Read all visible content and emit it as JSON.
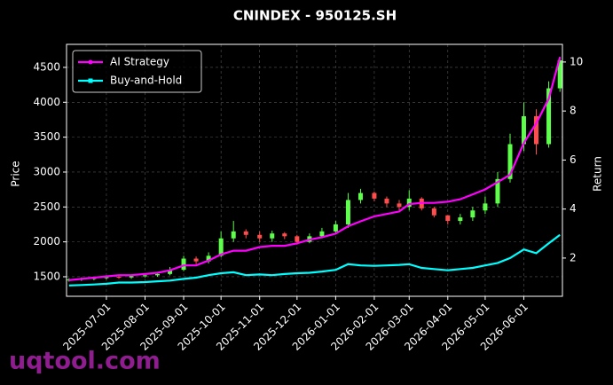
{
  "chart_data": {
    "type": "candlestick",
    "title": "CNINDEX - 950125.SH",
    "ylabel": "Price",
    "y2label": "Return",
    "watermark": "uqtool.com",
    "x": [
      "2025-06-01",
      "2025-06-11",
      "2025-06-21",
      "2025-07-01",
      "2025-07-11",
      "2025-07-21",
      "2025-08-01",
      "2025-08-11",
      "2025-08-21",
      "2025-09-01",
      "2025-09-11",
      "2025-09-21",
      "2025-10-01",
      "2025-10-11",
      "2025-10-21",
      "2025-11-01",
      "2025-11-11",
      "2025-11-21",
      "2025-12-01",
      "2025-12-11",
      "2025-12-21",
      "2026-01-01",
      "2026-01-11",
      "2026-01-21",
      "2026-02-01",
      "2026-02-11",
      "2026-02-21",
      "2026-03-01",
      "2026-03-11",
      "2026-03-21",
      "2026-04-01",
      "2026-04-11",
      "2026-04-21",
      "2026-05-01",
      "2026-05-11",
      "2026-05-21",
      "2026-06-01",
      "2026-06-11",
      "2026-06-21",
      "2026-06-30"
    ],
    "open": [
      1450,
      1460,
      1470,
      1480,
      1500,
      1490,
      1510,
      1520,
      1540,
      1600,
      1760,
      1720,
      1800,
      2050,
      2150,
      2100,
      2050,
      2120,
      2080,
      2000,
      2080,
      2150,
      2250,
      2600,
      2700,
      2620,
      2550,
      2500,
      2620,
      2480,
      2380,
      2300,
      2350,
      2450,
      2550,
      2900,
      3400,
      3800,
      3400,
      4200
    ],
    "high": [
      1480,
      1490,
      1500,
      1520,
      1520,
      1530,
      1540,
      1570,
      1640,
      1800,
      1790,
      1850,
      2150,
      2300,
      2180,
      2150,
      2160,
      2140,
      2100,
      2120,
      2200,
      2300,
      2700,
      2760,
      2720,
      2650,
      2600,
      2740,
      2640,
      2500,
      2380,
      2400,
      2500,
      2650,
      3000,
      3550,
      4000,
      3900,
      4300,
      4650
    ],
    "low": [
      1430,
      1440,
      1450,
      1460,
      1470,
      1470,
      1490,
      1500,
      1520,
      1580,
      1680,
      1690,
      1780,
      2000,
      2050,
      2000,
      2000,
      2040,
      1960,
      1980,
      2050,
      2120,
      2200,
      2550,
      2580,
      2500,
      2450,
      2450,
      2450,
      2350,
      2250,
      2250,
      2300,
      2400,
      2500,
      2850,
      3300,
      3250,
      3350,
      4150
    ],
    "close": [
      1460,
      1470,
      1480,
      1500,
      1490,
      1510,
      1520,
      1540,
      1600,
      1760,
      1720,
      1800,
      2050,
      2150,
      2100,
      2050,
      2120,
      2080,
      2000,
      2080,
      2150,
      2250,
      2600,
      2700,
      2620,
      2550,
      2500,
      2620,
      2480,
      2380,
      2300,
      2350,
      2450,
      2550,
      2900,
      3400,
      3800,
      3400,
      4200,
      4600
    ],
    "up_color": "#5dff4a",
    "down_color": "#ff4d4d",
    "series": [
      {
        "name": "AI Strategy",
        "color": "#ff00ff",
        "axis": "y2",
        "values": [
          1.1,
          1.15,
          1.2,
          1.25,
          1.3,
          1.3,
          1.35,
          1.4,
          1.5,
          1.7,
          1.7,
          1.9,
          2.15,
          2.3,
          2.3,
          2.45,
          2.5,
          2.5,
          2.6,
          2.75,
          2.85,
          3.0,
          3.3,
          3.5,
          3.7,
          3.8,
          3.9,
          4.2,
          4.25,
          4.25,
          4.3,
          4.4,
          4.6,
          4.8,
          5.1,
          5.4,
          6.7,
          7.5,
          8.5,
          10.2
        ]
      },
      {
        "name": "Buy-and-Hold",
        "color": "#00ffff",
        "axis": "y2",
        "values": [
          0.88,
          0.9,
          0.92,
          0.95,
          1.0,
          1.0,
          1.02,
          1.05,
          1.08,
          1.15,
          1.2,
          1.3,
          1.38,
          1.42,
          1.3,
          1.33,
          1.3,
          1.35,
          1.38,
          1.4,
          1.45,
          1.52,
          1.75,
          1.7,
          1.68,
          1.7,
          1.72,
          1.75,
          1.6,
          1.55,
          1.5,
          1.55,
          1.6,
          1.7,
          1.8,
          2.0,
          2.35,
          2.2,
          2.6,
          2.95
        ]
      }
    ],
    "xlim": [
      "2025-05-30",
      "2026-07-02"
    ],
    "xticks": [
      "2025-07-01",
      "2025-08-01",
      "2025-09-01",
      "2025-10-01",
      "2025-11-01",
      "2025-12-01",
      "2026-01-01",
      "2026-02-01",
      "2026-03-01",
      "2026-04-01",
      "2026-05-01",
      "2026-06-01"
    ],
    "ylim": [
      1220,
      4830
    ],
    "yticks": [
      1500,
      2000,
      2500,
      3000,
      3500,
      4000,
      4500
    ],
    "y2lim": [
      0.44,
      10.72
    ],
    "y2ticks": [
      2,
      4,
      6,
      8,
      10
    ],
    "grid": true,
    "legend": "upper left"
  }
}
